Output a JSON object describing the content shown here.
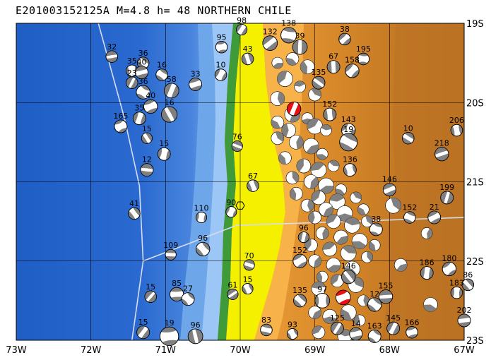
{
  "title": "E201003152125A  M=4.8  h= 48  NORTHERN CHILE",
  "axes": {
    "lon_ticks": [
      "73W",
      "72W",
      "71W",
      "70W",
      "69W",
      "68W",
      "67W"
    ],
    "lat_ticks": [
      "19S",
      "20S",
      "21S",
      "22S",
      "23S"
    ],
    "lon_range": [
      -73,
      -67
    ],
    "lat_range": [
      -23,
      -19
    ]
  },
  "colors": {
    "ocean_deep": "#1f5ec4",
    "ocean_mid": "#4a86de",
    "ocean_shallow": "#9cc6f5",
    "coast_green": "#3f9a3a",
    "coast_yellow": "#f4f000",
    "land_low": "#f3a640",
    "land_mid": "#d98a2a",
    "land_high": "#b0681e",
    "grid": "#000000",
    "trench_line": "#d8dcf0",
    "event_highlight": "#e81010",
    "beachball_dark": "#808080"
  },
  "beachballs": [
    {
      "label": "32",
      "lon": -71.72,
      "lat": -19.42,
      "mag": 0.9
    },
    {
      "label": "36",
      "lon": -71.3,
      "lat": -19.5,
      "mag": 0.9
    },
    {
      "label": "35",
      "lon": -71.45,
      "lat": -19.6,
      "mag": 0.9
    },
    {
      "label": "40",
      "lon": -71.32,
      "lat": -19.62,
      "mag": 1.0
    },
    {
      "label": "16",
      "lon": -71.05,
      "lat": -19.65,
      "mag": 0.9
    },
    {
      "label": "23",
      "lon": -71.45,
      "lat": -19.75,
      "mag": 0.9
    },
    {
      "label": "33",
      "lon": -70.6,
      "lat": -19.77,
      "mag": 1.0
    },
    {
      "label": "36",
      "lon": -71.3,
      "lat": -19.87,
      "mag": 1.1
    },
    {
      "label": "58",
      "lon": -70.92,
      "lat": -19.85,
      "mag": 1.2
    },
    {
      "label": "40",
      "lon": -71.2,
      "lat": -20.05,
      "mag": 1.1
    },
    {
      "label": "16",
      "lon": -70.95,
      "lat": -20.15,
      "mag": 1.3
    },
    {
      "label": "35",
      "lon": -71.35,
      "lat": -20.2,
      "mag": 1.0
    },
    {
      "label": "165",
      "lon": -71.6,
      "lat": -20.3,
      "mag": 1.0
    },
    {
      "label": "15",
      "lon": -71.25,
      "lat": -20.45,
      "mag": 0.8
    },
    {
      "label": "15",
      "lon": -71.02,
      "lat": -20.65,
      "mag": 1.0
    },
    {
      "label": "12",
      "lon": -71.25,
      "lat": -20.85,
      "mag": 1.0
    },
    {
      "label": "41",
      "lon": -71.42,
      "lat": -21.4,
      "mag": 0.9
    },
    {
      "label": "110",
      "lon": -70.52,
      "lat": -21.45,
      "mag": 0.8
    },
    {
      "label": "109",
      "lon": -70.93,
      "lat": -21.92,
      "mag": 0.8
    },
    {
      "label": "96",
      "lon": -70.5,
      "lat": -21.85,
      "mag": 1.1
    },
    {
      "label": "15",
      "lon": -71.2,
      "lat": -22.45,
      "mag": 0.9
    },
    {
      "label": "85",
      "lon": -70.85,
      "lat": -22.42,
      "mag": 1.1
    },
    {
      "label": "27",
      "lon": -70.7,
      "lat": -22.48,
      "mag": 1.0
    },
    {
      "label": "15",
      "lon": -71.3,
      "lat": -22.9,
      "mag": 1.0
    },
    {
      "label": "19",
      "lon": -70.95,
      "lat": -22.95,
      "mag": 1.6
    },
    {
      "label": "96",
      "lon": -70.6,
      "lat": -22.95,
      "mag": 1.2
    },
    {
      "label": "98",
      "lon": -69.98,
      "lat": -19.08,
      "mag": 0.8
    },
    {
      "label": "95",
      "lon": -70.25,
      "lat": -19.3,
      "mag": 0.9
    },
    {
      "label": "43",
      "lon": -69.9,
      "lat": -19.45,
      "mag": 0.9
    },
    {
      "label": "10",
      "lon": -70.26,
      "lat": -19.65,
      "mag": 0.9
    },
    {
      "label": "76",
      "lon": -70.04,
      "lat": -20.55,
      "mag": 0.8
    },
    {
      "label": "67",
      "lon": -69.83,
      "lat": -21.05,
      "mag": 0.9
    },
    {
      "label": "90",
      "lon": -70.12,
      "lat": -21.38,
      "mag": 0.8
    },
    {
      "label": "70",
      "lon": -69.88,
      "lat": -22.05,
      "mag": 0.8
    },
    {
      "label": "15",
      "lon": -69.9,
      "lat": -22.35,
      "mag": 0.8
    },
    {
      "label": "61",
      "lon": -70.1,
      "lat": -22.42,
      "mag": 0.8
    },
    {
      "label": "83",
      "lon": -69.65,
      "lat": -22.87,
      "mag": 0.9
    },
    {
      "label": "93",
      "lon": -69.3,
      "lat": -22.92,
      "mag": 0.8
    },
    {
      "label": "132",
      "lon": -69.6,
      "lat": -19.25,
      "mag": 1.2
    },
    {
      "label": "138",
      "lon": -69.35,
      "lat": -19.15,
      "mag": 1.3
    },
    {
      "label": "39",
      "lon": -69.2,
      "lat": -19.3,
      "mag": 1.2
    },
    {
      "label": "38",
      "lon": -68.6,
      "lat": -19.2,
      "mag": 0.9
    },
    {
      "label": "195",
      "lon": -68.35,
      "lat": -19.45,
      "mag": 0.9
    },
    {
      "label": "67",
      "lon": -68.75,
      "lat": -19.55,
      "mag": 1.0
    },
    {
      "label": "158",
      "lon": -68.5,
      "lat": -19.6,
      "mag": 1.1
    },
    {
      "label": "135",
      "lon": -68.95,
      "lat": -19.75,
      "mag": 1.0
    },
    {
      "label": "152",
      "lon": -68.8,
      "lat": -20.15,
      "mag": 1.0
    },
    {
      "label": "143",
      "lon": -68.55,
      "lat": -20.35,
      "mag": 1.1
    },
    {
      "label": "10",
      "lon": -67.75,
      "lat": -20.45,
      "mag": 0.9
    },
    {
      "label": "206",
      "lon": -67.1,
      "lat": -20.35,
      "mag": 0.9
    },
    {
      "label": "218",
      "lon": -67.3,
      "lat": -20.65,
      "mag": 1.1
    },
    {
      "label": "19",
      "lon": -68.55,
      "lat": -20.5,
      "mag": 1.5
    },
    {
      "label": "136",
      "lon": -68.53,
      "lat": -20.85,
      "mag": 1.0
    },
    {
      "label": "146",
      "lon": -68.0,
      "lat": -21.1,
      "mag": 1.0
    },
    {
      "label": "152",
      "lon": -67.73,
      "lat": -21.45,
      "mag": 0.9
    },
    {
      "label": "199",
      "lon": -67.23,
      "lat": -21.2,
      "mag": 1.0
    },
    {
      "label": "21",
      "lon": -67.4,
      "lat": -21.45,
      "mag": 1.0
    },
    {
      "label": "38",
      "lon": -68.18,
      "lat": -21.6,
      "mag": 1.0
    },
    {
      "label": "96",
      "lon": -69.15,
      "lat": -21.7,
      "mag": 0.8
    },
    {
      "label": "152",
      "lon": -69.2,
      "lat": -22.0,
      "mag": 1.1
    },
    {
      "label": "146",
      "lon": -68.55,
      "lat": -22.2,
      "mag": 1.1
    },
    {
      "label": "186",
      "lon": -67.5,
      "lat": -22.15,
      "mag": 1.0
    },
    {
      "label": "180",
      "lon": -67.2,
      "lat": -22.1,
      "mag": 1.1
    },
    {
      "label": "86",
      "lon": -66.95,
      "lat": -22.3,
      "mag": 0.9
    },
    {
      "label": "183",
      "lon": -67.1,
      "lat": -22.4,
      "mag": 0.9
    },
    {
      "label": "155",
      "lon": -68.05,
      "lat": -22.45,
      "mag": 1.1
    },
    {
      "label": "135",
      "lon": -69.2,
      "lat": -22.5,
      "mag": 1.0
    },
    {
      "label": "97",
      "lon": -68.9,
      "lat": -22.5,
      "mag": 1.2
    },
    {
      "label": "202",
      "lon": -67.0,
      "lat": -22.75,
      "mag": 1.0
    },
    {
      "label": "12",
      "lon": -68.2,
      "lat": -22.55,
      "mag": 1.1
    },
    {
      "label": "125",
      "lon": -68.7,
      "lat": -22.85,
      "mag": 1.0
    },
    {
      "label": "14",
      "lon": -68.45,
      "lat": -22.92,
      "mag": 1.0
    },
    {
      "label": "163",
      "lon": -68.2,
      "lat": -22.95,
      "mag": 1.0
    },
    {
      "label": "145",
      "lon": -67.95,
      "lat": -22.85,
      "mag": 1.0
    },
    {
      "label": "166",
      "lon": -67.7,
      "lat": -22.9,
      "mag": 0.9
    }
  ],
  "highlighted_events": [
    {
      "lon": -69.28,
      "lat": -20.08,
      "mag": 1.1
    },
    {
      "lon": -68.62,
      "lat": -22.46,
      "mag": 1.2
    }
  ],
  "background_events": [
    [
      -69.5,
      -19.5
    ],
    [
      -69.3,
      -19.45
    ],
    [
      -69.1,
      -19.55
    ],
    [
      -69.4,
      -19.7
    ],
    [
      -69.2,
      -19.8
    ],
    [
      -69.0,
      -19.9
    ],
    [
      -69.5,
      -19.95
    ],
    [
      -69.3,
      -20.15
    ],
    [
      -69.1,
      -20.2
    ],
    [
      -69.5,
      -20.25
    ],
    [
      -69.35,
      -20.35
    ],
    [
      -69.0,
      -20.3
    ],
    [
      -68.85,
      -20.35
    ],
    [
      -69.5,
      -20.45
    ],
    [
      -69.25,
      -20.5
    ],
    [
      -69.05,
      -20.55
    ],
    [
      -68.9,
      -20.65
    ],
    [
      -69.4,
      -20.7
    ],
    [
      -69.15,
      -20.8
    ],
    [
      -68.95,
      -20.85
    ],
    [
      -68.75,
      -20.8
    ],
    [
      -69.3,
      -20.95
    ],
    [
      -69.05,
      -21.0
    ],
    [
      -68.85,
      -21.05
    ],
    [
      -68.65,
      -21.1
    ],
    [
      -69.25,
      -21.15
    ],
    [
      -68.95,
      -21.2
    ],
    [
      -68.7,
      -21.25
    ],
    [
      -68.45,
      -21.2
    ],
    [
      -69.1,
      -21.3
    ],
    [
      -68.85,
      -21.35
    ],
    [
      -68.6,
      -21.4
    ],
    [
      -68.35,
      -21.35
    ],
    [
      -69.0,
      -21.45
    ],
    [
      -68.75,
      -21.5
    ],
    [
      -68.5,
      -21.55
    ],
    [
      -68.3,
      -21.5
    ],
    [
      -68.9,
      -21.65
    ],
    [
      -68.65,
      -21.7
    ],
    [
      -68.4,
      -21.75
    ],
    [
      -68.2,
      -21.8
    ],
    [
      -69.05,
      -21.8
    ],
    [
      -68.8,
      -21.85
    ],
    [
      -68.55,
      -21.9
    ],
    [
      -68.3,
      -21.95
    ],
    [
      -69.0,
      -22.0
    ],
    [
      -68.75,
      -22.05
    ],
    [
      -68.5,
      -22.1
    ],
    [
      -68.9,
      -22.2
    ],
    [
      -68.7,
      -22.25
    ],
    [
      -68.95,
      -22.35
    ],
    [
      -68.45,
      -22.3
    ],
    [
      -68.35,
      -22.5
    ],
    [
      -69.0,
      -22.65
    ],
    [
      -68.8,
      -22.7
    ],
    [
      -68.55,
      -22.65
    ],
    [
      -68.4,
      -22.75
    ],
    [
      -68.95,
      -22.9
    ],
    [
      -68.6,
      -22.95
    ],
    [
      -67.95,
      -21.3
    ],
    [
      -67.5,
      -21.65
    ],
    [
      -67.85,
      -22.05
    ],
    [
      -67.45,
      -22.55
    ]
  ],
  "hexagon": {
    "lon": -70.0,
    "lat": -21.3
  },
  "trench": [
    [
      -71.9,
      -19.0
    ],
    [
      -71.55,
      -20.2
    ],
    [
      -71.35,
      -21.05
    ],
    [
      -71.3,
      -22.0
    ],
    [
      -71.45,
      -23.0
    ]
  ],
  "trench_branch": [
    [
      -71.3,
      -22.0
    ],
    [
      -70.05,
      -21.55
    ],
    [
      -67.0,
      -21.45
    ]
  ]
}
